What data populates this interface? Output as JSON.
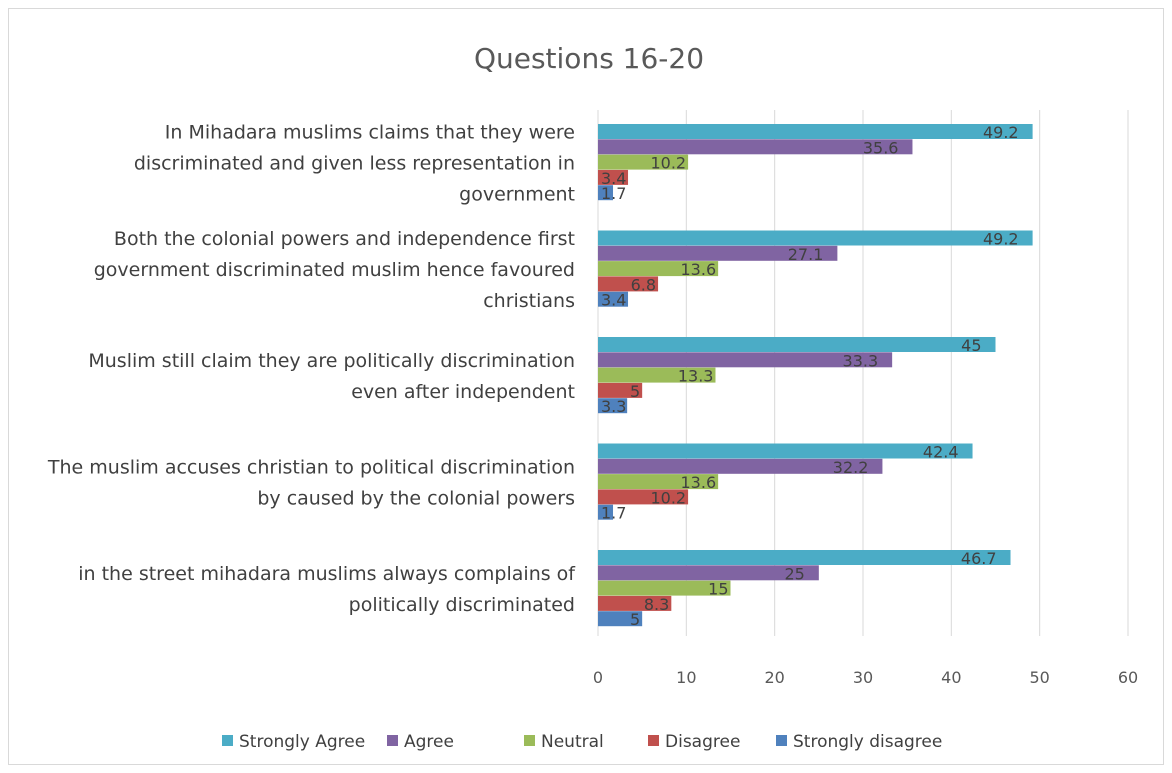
{
  "chart_data": {
    "type": "bar",
    "orientation": "horizontal",
    "title": "Questions 16-20",
    "categories": [
      "In Mihadara muslims claims that they were discriminated and given less representation in government",
      "Both the colonial powers and independence first government discriminated muslim hence favoured christians",
      "Muslim still claim they are politically discrimination even after independent",
      "The muslim accuses christian to political discrimination by caused by the colonial powers",
      "in the street mihadara muslims always complains of politically discriminated"
    ],
    "category_lines": [
      [
        "In Mihadara muslims claims that they were",
        "discriminated and given less representation in",
        "government"
      ],
      [
        "Both the colonial powers and independence first",
        "government discriminated muslim hence favoured",
        "christians"
      ],
      [
        "Muslim still claim they are politically discrimination",
        "even after independent"
      ],
      [
        "The muslim accuses christian to political discrimination",
        "by caused by the colonial powers"
      ],
      [
        "in the street mihadara muslims always complains of",
        "politically discriminated"
      ]
    ],
    "series": [
      {
        "name": "Strongly Agree",
        "color": "#4bacc6",
        "values": [
          49.2,
          49.2,
          45,
          42.4,
          46.7
        ]
      },
      {
        "name": "Agree",
        "color": "#8064a2",
        "values": [
          35.6,
          27.1,
          33.3,
          32.2,
          25
        ]
      },
      {
        "name": "Neutral",
        "color": "#9bbb59",
        "values": [
          10.2,
          13.6,
          13.3,
          13.6,
          15
        ]
      },
      {
        "name": "Disagree",
        "color": "#c0504d",
        "values": [
          3.4,
          6.8,
          5,
          10.2,
          8.3
        ]
      },
      {
        "name": "Strongly disagree",
        "color": "#4f81bd",
        "values": [
          1.7,
          3.4,
          3.3,
          1.7,
          5
        ]
      }
    ],
    "xlim": [
      0,
      60
    ],
    "xticks": [
      0,
      10,
      20,
      30,
      40,
      50,
      60
    ],
    "grid": true,
    "legend_position": "bottom"
  }
}
